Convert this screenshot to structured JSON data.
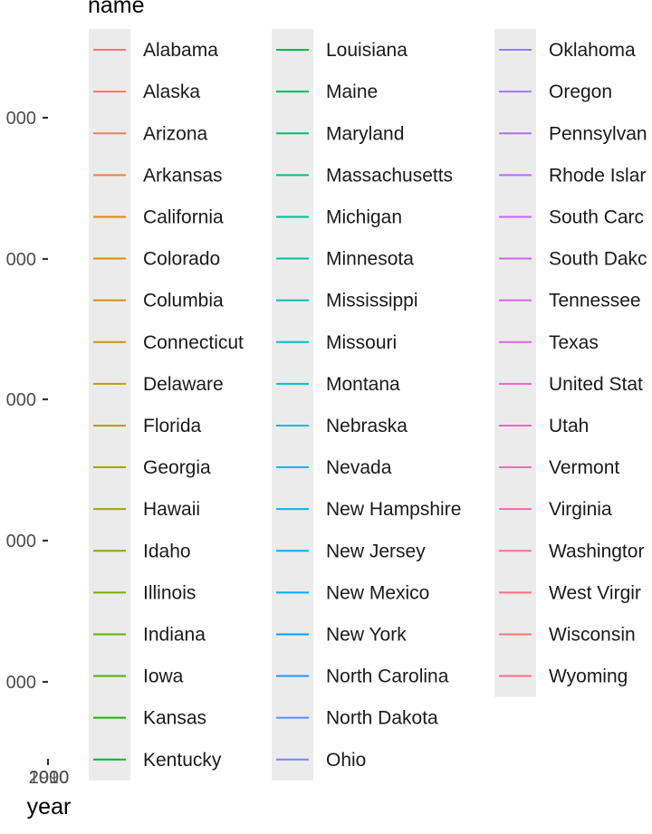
{
  "chart_data": {
    "type": "line",
    "title": "",
    "xlabel": "year",
    "ylabel": "",
    "x_ticks": [
      "1990",
      "2000",
      "2010"
    ],
    "y_ticks": [
      "000",
      "000",
      "000",
      "000",
      "000"
    ],
    "legend": {
      "title": "name",
      "position": "right",
      "entries": [
        {
          "name": "Alabama",
          "color": "#F8766D"
        },
        {
          "name": "Alaska",
          "color": "#F67769"
        },
        {
          "name": "Arizona",
          "color": "#F27D52"
        },
        {
          "name": "Arkansas",
          "color": "#EC8239"
        },
        {
          "name": "California",
          "color": "#E58700"
        },
        {
          "name": "Colorado",
          "color": "#DD8D00"
        },
        {
          "name": "Columbia",
          "color": "#D59100"
        },
        {
          "name": "Connecticut",
          "color": "#CB9600"
        },
        {
          "name": "Delaware",
          "color": "#C09B00"
        },
        {
          "name": "Florida",
          "color": "#B59F00"
        },
        {
          "name": "Georgia",
          "color": "#A8A200"
        },
        {
          "name": "Hawaii",
          "color": "#9AA600"
        },
        {
          "name": "Idaho",
          "color": "#8BAA00"
        },
        {
          "name": "Illinois",
          "color": "#7AAD00"
        },
        {
          "name": "Indiana",
          "color": "#65B000"
        },
        {
          "name": "Iowa",
          "color": "#4BB300"
        },
        {
          "name": "Kansas",
          "color": "#1BB600"
        },
        {
          "name": "Kentucky",
          "color": "#00B824"
        },
        {
          "name": "Louisiana",
          "color": "#00BA42"
        },
        {
          "name": "Maine",
          "color": "#00BB59"
        },
        {
          "name": "Maryland",
          "color": "#00BD6E"
        },
        {
          "name": "Massachusetts",
          "color": "#00BE81"
        },
        {
          "name": "Michigan",
          "color": "#00BF93"
        },
        {
          "name": "Minnesota",
          "color": "#00C0A3"
        },
        {
          "name": "Mississippi",
          "color": "#00C0B3"
        },
        {
          "name": "Missouri",
          "color": "#00BFC2"
        },
        {
          "name": "Montana",
          "color": "#00BECF"
        },
        {
          "name": "Nebraska",
          "color": "#00BCDC"
        },
        {
          "name": "Nevada",
          "color": "#00B9E7"
        },
        {
          "name": "New Hampshire",
          "color": "#00B5EE"
        },
        {
          "name": "New Jersey",
          "color": "#00B0F6"
        },
        {
          "name": "New Mexico",
          "color": "#00A9FF"
        },
        {
          "name": "New York",
          "color": "#00A1FF"
        },
        {
          "name": "North Carolina",
          "color": "#1E98FF"
        },
        {
          "name": "North Dakota",
          "color": "#618CFF"
        },
        {
          "name": "Ohio",
          "color": "#7F80FF"
        },
        {
          "name": "Oklahoma",
          "color": "#8F7CFF"
        },
        {
          "name": "Oregon",
          "color": "#9E78FF"
        },
        {
          "name": "Pennsylvan",
          "color": "#AC72FF"
        },
        {
          "name": "Rhode Islar",
          "color": "#B86BFF"
        },
        {
          "name": "South Carc",
          "color": "#C466FF"
        },
        {
          "name": "South Dakc",
          "color": "#D062F6"
        },
        {
          "name": "Tennessee",
          "color": "#DB61EC"
        },
        {
          "name": "Texas",
          "color": "#E363E0"
        },
        {
          "name": "United Stat",
          "color": "#EA64D3"
        },
        {
          "name": "Utah",
          "color": "#F066C5"
        },
        {
          "name": "Vermont",
          "color": "#F469B6"
        },
        {
          "name": "Virginia",
          "color": "#F76CA7"
        },
        {
          "name": "Washingtor",
          "color": "#FA6F97"
        },
        {
          "name": "West Virgir",
          "color": "#FB7286"
        },
        {
          "name": "Wisconsin",
          "color": "#FC7476"
        },
        {
          "name": "Wyoming",
          "color": "#FD6E84"
        }
      ]
    },
    "series": []
  }
}
